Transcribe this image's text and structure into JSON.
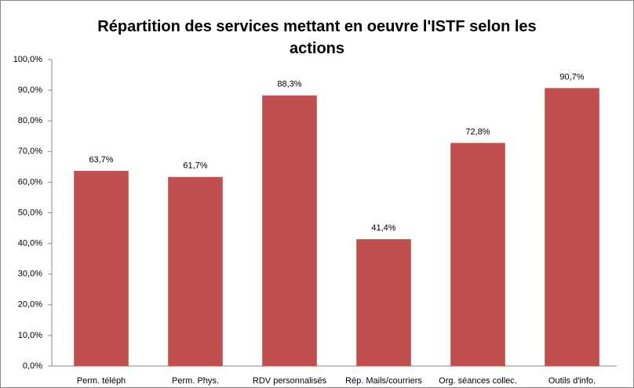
{
  "chart_data": {
    "type": "bar",
    "title": "Répartition des services mettant en oeuvre l'ISTF selon les actions",
    "categories": [
      "Perm. téléph",
      "Perm. Phys.",
      "RDV personnalisés",
      "Rép. Mails/courriers",
      "Org. séances collec.",
      "Outils d'info."
    ],
    "values": [
      63.7,
      61.7,
      88.3,
      41.4,
      72.8,
      90.7
    ],
    "value_labels": [
      "63,7%",
      "61,7%",
      "88,3%",
      "41,4%",
      "72,8%",
      "90,7%"
    ],
    "color": "#c0504d",
    "ylim": [
      0,
      100
    ],
    "yticks": [
      {
        "value": 0,
        "label": "0,0%"
      },
      {
        "value": 10,
        "label": "10,0%"
      },
      {
        "value": 20,
        "label": "20,0%"
      },
      {
        "value": 30,
        "label": "30,0%"
      },
      {
        "value": 40,
        "label": "40,0%"
      },
      {
        "value": 50,
        "label": "50,0%"
      },
      {
        "value": 60,
        "label": "60,0%"
      },
      {
        "value": 70,
        "label": "70,0%"
      },
      {
        "value": 80,
        "label": "80,0%"
      },
      {
        "value": 90,
        "label": "90,0%"
      },
      {
        "value": 100,
        "label": "100,0%"
      }
    ],
    "grid": false
  }
}
